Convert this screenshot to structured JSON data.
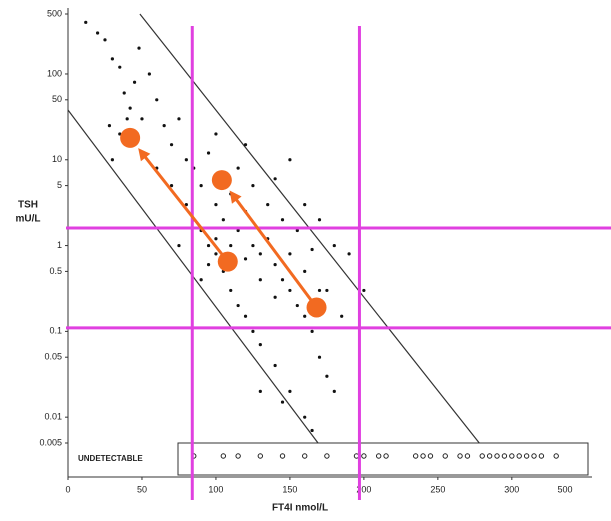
{
  "chart_data": {
    "type": "scatter",
    "x_label": "FT4I nmol/L",
    "y_label": "TSH",
    "y_unit": "mU/L",
    "y_scale": "log",
    "xlim": [
      0,
      340
    ],
    "ylim": [
      0.005,
      500
    ],
    "xticks": [
      0,
      50,
      100,
      150,
      200,
      250,
      300
    ],
    "yticks": [
      500,
      100,
      50,
      10,
      5,
      1,
      0.5,
      0.1,
      0.05,
      0.01,
      0.005
    ],
    "annotations": [
      "UNDETECTABLE",
      "500"
    ],
    "reference_color": "#e040e0",
    "reference_x": [
      84,
      197
    ],
    "reference_y": [
      1.6,
      0.11
    ],
    "series": [
      {
        "color": "#111111",
        "x": [
          12,
          20,
          25,
          30,
          35,
          38,
          42,
          45,
          50,
          55,
          48,
          60,
          65,
          70,
          75,
          80,
          85,
          90,
          95,
          100,
          105,
          110,
          115,
          120,
          125,
          130,
          135,
          140,
          145,
          150,
          155,
          160,
          165,
          170,
          175,
          180,
          95,
          100,
          105,
          110,
          115,
          120,
          125,
          130,
          140,
          150,
          160,
          85,
          90,
          95,
          100,
          110,
          120,
          130,
          140,
          150,
          160,
          170,
          180,
          190,
          200,
          105,
          115,
          125,
          135,
          145,
          155,
          165,
          60,
          70,
          80,
          90,
          75,
          100,
          120,
          140,
          150,
          130,
          145,
          165,
          175,
          185,
          40,
          35,
          28,
          30,
          170,
          160
        ],
        "values": [
          400,
          300,
          250,
          150,
          120,
          60,
          40,
          80,
          30,
          100,
          200,
          50,
          25,
          15,
          30,
          10,
          8,
          5,
          12,
          3,
          2,
          4,
          1.5,
          2.5,
          1,
          0.8,
          1.2,
          0.6,
          0.4,
          0.3,
          0.2,
          0.15,
          0.1,
          0.05,
          0.03,
          0.02,
          1,
          0.8,
          0.5,
          0.3,
          0.2,
          0.15,
          0.1,
          0.07,
          0.04,
          0.02,
          0.01,
          2,
          1.5,
          0.6,
          1.2,
          1,
          0.7,
          0.4,
          0.25,
          0.8,
          0.5,
          0.3,
          1,
          0.8,
          0.3,
          6,
          8,
          5,
          3,
          2,
          1.5,
          0.9,
          8,
          5,
          3,
          0.4,
          1,
          20,
          15,
          6,
          10,
          0.02,
          0.015,
          0.007,
          0.3,
          0.15,
          30,
          20,
          25,
          10,
          2,
          3
        ]
      },
      {
        "color": "#f26a21",
        "x": [
          42,
          104,
          108,
          168
        ],
        "values": [
          18,
          5.8,
          0.65,
          0.19
        ]
      }
    ],
    "lines": [
      {
        "color": "#333333",
        "x": [
          48.6,
          278
        ],
        "values": [
          500,
          0.005
        ]
      },
      {
        "color": "#333333",
        "x": [
          0,
          169
        ],
        "values": [
          38,
          0.005
        ]
      }
    ],
    "undetectable_x": [
      85,
      105,
      115,
      130,
      145,
      160,
      175,
      195,
      200,
      210,
      215,
      235,
      240,
      245,
      255,
      265,
      270,
      280,
      285,
      290,
      295,
      300,
      305,
      310,
      315,
      320,
      330
    ]
  }
}
